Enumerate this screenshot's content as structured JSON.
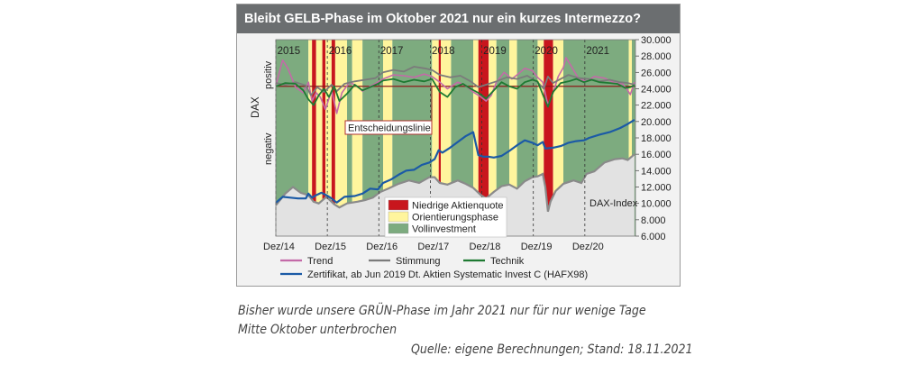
{
  "title": "Bleibt GELB-Phase im Oktober 2021 nur ein kurzes Intermezzo?",
  "caption_line1": "Bisher wurde unsere GRÜN-Phase im Jahr 2021 nur für nur wenige Tage",
  "caption_line2": "Mitte Oktober unterbrochen",
  "source": "Quelle: eigene Berechnungen; Stand: 18.11.2021",
  "chart_data": {
    "type": "line",
    "y_axis_left_label": "DAX",
    "y_axis_left_top": "positiv",
    "y_axis_left_bottom": "negativ",
    "x_labels": [
      "Dez/14",
      "Dez/15",
      "Dez/16",
      "Dez/17",
      "Dez/18",
      "Dez/19",
      "Dez/20"
    ],
    "year_labels": [
      "2015",
      "2016",
      "2017",
      "2018",
      "2019",
      "2020",
      "2021"
    ],
    "x_range": [
      2014.917,
      2021.9
    ],
    "y_right_ticks": [
      "30.000",
      "28.000",
      "26.000",
      "24.000",
      "22.000",
      "20.000",
      "18.000",
      "16.000",
      "14.000",
      "12.000",
      "10.000",
      "8.000",
      "6.000"
    ],
    "ylim": [
      6000,
      30000
    ],
    "annotations": [
      "Entscheidungslinie",
      "DAX-Index"
    ],
    "phase_legend": [
      {
        "label": "Niedrige Aktienquote",
        "color": "#c8161d"
      },
      {
        "label": "Orientierungsphase",
        "color": "#fff59d"
      },
      {
        "label": "Vollinvestment",
        "color": "#7dab7f"
      }
    ],
    "phases": [
      {
        "phase": "green",
        "start": 2014.917,
        "end": 2015.55
      },
      {
        "phase": "yellow",
        "start": 2015.55,
        "end": 2015.62
      },
      {
        "phase": "red",
        "start": 2015.62,
        "end": 2015.7
      },
      {
        "phase": "yellow",
        "start": 2015.7,
        "end": 2015.82
      },
      {
        "phase": "red",
        "start": 2015.82,
        "end": 2015.88
      },
      {
        "phase": "yellow",
        "start": 2015.88,
        "end": 2016.0
      },
      {
        "phase": "red",
        "start": 2016.0,
        "end": 2016.07
      },
      {
        "phase": "yellow",
        "start": 2016.07,
        "end": 2016.3
      },
      {
        "phase": "green",
        "start": 2016.3,
        "end": 2016.4
      },
      {
        "phase": "yellow",
        "start": 2016.4,
        "end": 2016.6
      },
      {
        "phase": "green",
        "start": 2016.6,
        "end": 2017.0
      },
      {
        "phase": "yellow",
        "start": 2017.0,
        "end": 2017.18
      },
      {
        "phase": "green",
        "start": 2017.18,
        "end": 2017.95
      },
      {
        "phase": "yellow",
        "start": 2017.95,
        "end": 2018.08
      },
      {
        "phase": "red",
        "start": 2018.08,
        "end": 2018.12
      },
      {
        "phase": "yellow",
        "start": 2018.12,
        "end": 2018.32
      },
      {
        "phase": "green",
        "start": 2018.32,
        "end": 2018.75
      },
      {
        "phase": "yellow",
        "start": 2018.75,
        "end": 2018.85
      },
      {
        "phase": "red",
        "start": 2018.85,
        "end": 2019.05
      },
      {
        "phase": "yellow",
        "start": 2019.05,
        "end": 2019.2
      },
      {
        "phase": "green",
        "start": 2019.2,
        "end": 2019.45
      },
      {
        "phase": "yellow",
        "start": 2019.45,
        "end": 2019.6
      },
      {
        "phase": "green",
        "start": 2019.6,
        "end": 2020.0
      },
      {
        "phase": "yellow",
        "start": 2020.0,
        "end": 2020.12
      },
      {
        "phase": "red",
        "start": 2020.12,
        "end": 2020.3
      },
      {
        "phase": "yellow",
        "start": 2020.3,
        "end": 2020.5
      },
      {
        "phase": "green",
        "start": 2020.5,
        "end": 2021.77
      },
      {
        "phase": "yellow",
        "start": 2021.77,
        "end": 2021.83
      },
      {
        "phase": "green",
        "start": 2021.83,
        "end": 2021.9
      }
    ],
    "oscillator_zero_value": 24300,
    "series": [
      {
        "name": "Trend",
        "color": "#c46aa8",
        "x": [
          2014.92,
          2015.05,
          2015.15,
          2015.3,
          2015.45,
          2015.55,
          2015.62,
          2015.7,
          2015.78,
          2015.88,
          2016.0,
          2016.1,
          2016.2,
          2016.35,
          2016.5,
          2016.6,
          2016.75,
          2016.9,
          2017.0,
          2017.2,
          2017.4,
          2017.6,
          2017.8,
          2017.95,
          2018.1,
          2018.25,
          2018.45,
          2018.6,
          2018.75,
          2018.9,
          2019.0,
          2019.1,
          2019.2,
          2019.35,
          2019.5,
          2019.6,
          2019.75,
          2019.9,
          2020.0,
          2020.1,
          2020.2,
          2020.3,
          2020.4,
          2020.5,
          2020.55,
          2020.65,
          2020.8,
          2020.95,
          2021.1,
          2021.3,
          2021.5,
          2021.65,
          2021.75,
          2021.8,
          2021.88
        ],
        "y": [
          24500,
          27500,
          26500,
          24200,
          23500,
          24800,
          22500,
          23500,
          23000,
          21500,
          23800,
          21000,
          23500,
          24800,
          24300,
          23700,
          24300,
          24800,
          25200,
          25700,
          25600,
          25400,
          25800,
          25500,
          24800,
          24000,
          24800,
          24400,
          23600,
          23000,
          22500,
          23200,
          24800,
          26000,
          25200,
          25700,
          26500,
          26200,
          25400,
          24800,
          22000,
          23500,
          25500,
          26600,
          27800,
          26800,
          25200,
          24900,
          25500,
          25300,
          24700,
          24600,
          23800,
          23300,
          24800
        ]
      },
      {
        "name": "Stimmung",
        "color": "#7b7b7b",
        "x": [
          2014.92,
          2015.1,
          2015.3,
          2015.5,
          2015.6,
          2015.72,
          2015.85,
          2016.0,
          2016.1,
          2016.25,
          2016.45,
          2016.65,
          2016.85,
          2017.0,
          2017.2,
          2017.4,
          2017.6,
          2017.8,
          2017.95,
          2018.1,
          2018.3,
          2018.5,
          2018.7,
          2018.85,
          2019.0,
          2019.2,
          2019.4,
          2019.6,
          2019.8,
          2020.0,
          2020.12,
          2020.2,
          2020.3,
          2020.45,
          2020.6,
          2020.8,
          2021.0,
          2021.2,
          2021.4,
          2021.6,
          2021.75,
          2021.88
        ],
        "y": [
          24700,
          24500,
          24800,
          24400,
          23200,
          24200,
          23600,
          24500,
          23700,
          24600,
          24900,
          25100,
          25300,
          26000,
          26300,
          26100,
          26700,
          26500,
          26300,
          25700,
          25400,
          25600,
          24900,
          24200,
          24500,
          24900,
          25400,
          25200,
          25600,
          24800,
          24000,
          25500,
          24700,
          25200,
          25700,
          25300,
          25200,
          24900,
          25100,
          24800,
          24700,
          24500
        ]
      },
      {
        "name": "Technik",
        "color": "#1e7a32",
        "x": [
          2014.92,
          2015.1,
          2015.3,
          2015.45,
          2015.55,
          2015.65,
          2015.75,
          2015.85,
          2015.95,
          2016.05,
          2016.15,
          2016.3,
          2016.45,
          2016.6,
          2016.75,
          2016.9,
          2017.0,
          2017.2,
          2017.4,
          2017.6,
          2017.8,
          2017.95,
          2018.1,
          2018.25,
          2018.4,
          2018.55,
          2018.7,
          2018.85,
          2019.0,
          2019.15,
          2019.3,
          2019.45,
          2019.6,
          2019.75,
          2019.9,
          2020.0,
          2020.12,
          2020.2,
          2020.3,
          2020.45,
          2020.6,
          2020.75,
          2020.9,
          2021.05,
          2021.2,
          2021.4,
          2021.55,
          2021.7,
          2021.8,
          2021.88
        ],
        "y": [
          24300,
          24700,
          24600,
          23800,
          22700,
          22000,
          23200,
          24000,
          23000,
          24300,
          22500,
          23400,
          24500,
          23800,
          24200,
          24600,
          25000,
          25200,
          24800,
          25100,
          24900,
          25200,
          23600,
          23000,
          24200,
          24600,
          24000,
          23500,
          22800,
          23800,
          24800,
          24300,
          24000,
          24800,
          25100,
          24900,
          23000,
          21800,
          23600,
          24700,
          24900,
          25200,
          24800,
          25100,
          24800,
          24700,
          24600,
          24100,
          24200,
          24400
        ]
      },
      {
        "name": "Zertifikat, ab Jun 2019 Dt. Aktien Systematic Invest C (HAFX98)",
        "color": "#1b5aa6",
        "x": [
          2014.92,
          2015.05,
          2015.2,
          2015.35,
          2015.5,
          2015.55,
          2015.62,
          2015.7,
          2015.8,
          2015.9,
          2016.0,
          2016.1,
          2016.25,
          2016.45,
          2016.6,
          2016.75,
          2016.9,
          2017.0,
          2017.15,
          2017.3,
          2017.45,
          2017.6,
          2017.75,
          2017.9,
          2018.0,
          2018.08,
          2018.15,
          2018.3,
          2018.45,
          2018.6,
          2018.75,
          2018.85,
          2018.95,
          2019.05,
          2019.15,
          2019.3,
          2019.45,
          2019.6,
          2019.75,
          2019.9,
          2020.0,
          2020.1,
          2020.15,
          2020.3,
          2020.45,
          2020.6,
          2020.75,
          2020.9,
          2021.0,
          2021.2,
          2021.4,
          2021.6,
          2021.75,
          2021.88
        ],
        "y": [
          10100,
          10800,
          10700,
          10600,
          10600,
          11200,
          10700,
          11000,
          11300,
          11000,
          10600,
          10100,
          10800,
          10900,
          11200,
          11800,
          11700,
          12500,
          12900,
          13500,
          14000,
          14100,
          14700,
          15000,
          15400,
          16500,
          16200,
          16800,
          17500,
          18200,
          18700,
          15900,
          15700,
          15700,
          15600,
          15800,
          16400,
          17100,
          17700,
          17400,
          17100,
          17500,
          16700,
          16800,
          17000,
          17400,
          17600,
          17700,
          18000,
          18400,
          18700,
          19200,
          19700,
          20200
        ]
      },
      {
        "name": "DAX-Index",
        "color": "#8a8a8a",
        "x": [
          2014.92,
          2015.1,
          2015.25,
          2015.4,
          2015.55,
          2015.65,
          2015.75,
          2015.9,
          2016.05,
          2016.15,
          2016.3,
          2016.5,
          2016.65,
          2016.8,
          2016.95,
          2017.1,
          2017.3,
          2017.5,
          2017.7,
          2017.9,
          2018.0,
          2018.1,
          2018.25,
          2018.45,
          2018.6,
          2018.75,
          2018.9,
          2019.0,
          2019.15,
          2019.3,
          2019.45,
          2019.6,
          2019.75,
          2019.9,
          2020.0,
          2020.1,
          2020.15,
          2020.2,
          2020.25,
          2020.35,
          2020.5,
          2020.7,
          2020.85,
          2020.95,
          2021.1,
          2021.3,
          2021.5,
          2021.65,
          2021.75,
          2021.88
        ],
        "y": [
          9800,
          11200,
          12000,
          11300,
          11000,
          10200,
          10000,
          10800,
          9900,
          9500,
          10000,
          10200,
          10400,
          10700,
          11400,
          11800,
          12400,
          12800,
          12500,
          13200,
          13200,
          12500,
          12300,
          12800,
          12400,
          11900,
          11000,
          10600,
          11400,
          12100,
          12300,
          11800,
          12700,
          13200,
          13300,
          13600,
          12000,
          9000,
          10200,
          11500,
          12400,
          12800,
          12500,
          13600,
          13900,
          15000,
          15400,
          15500,
          15300,
          16000
        ]
      }
    ]
  }
}
